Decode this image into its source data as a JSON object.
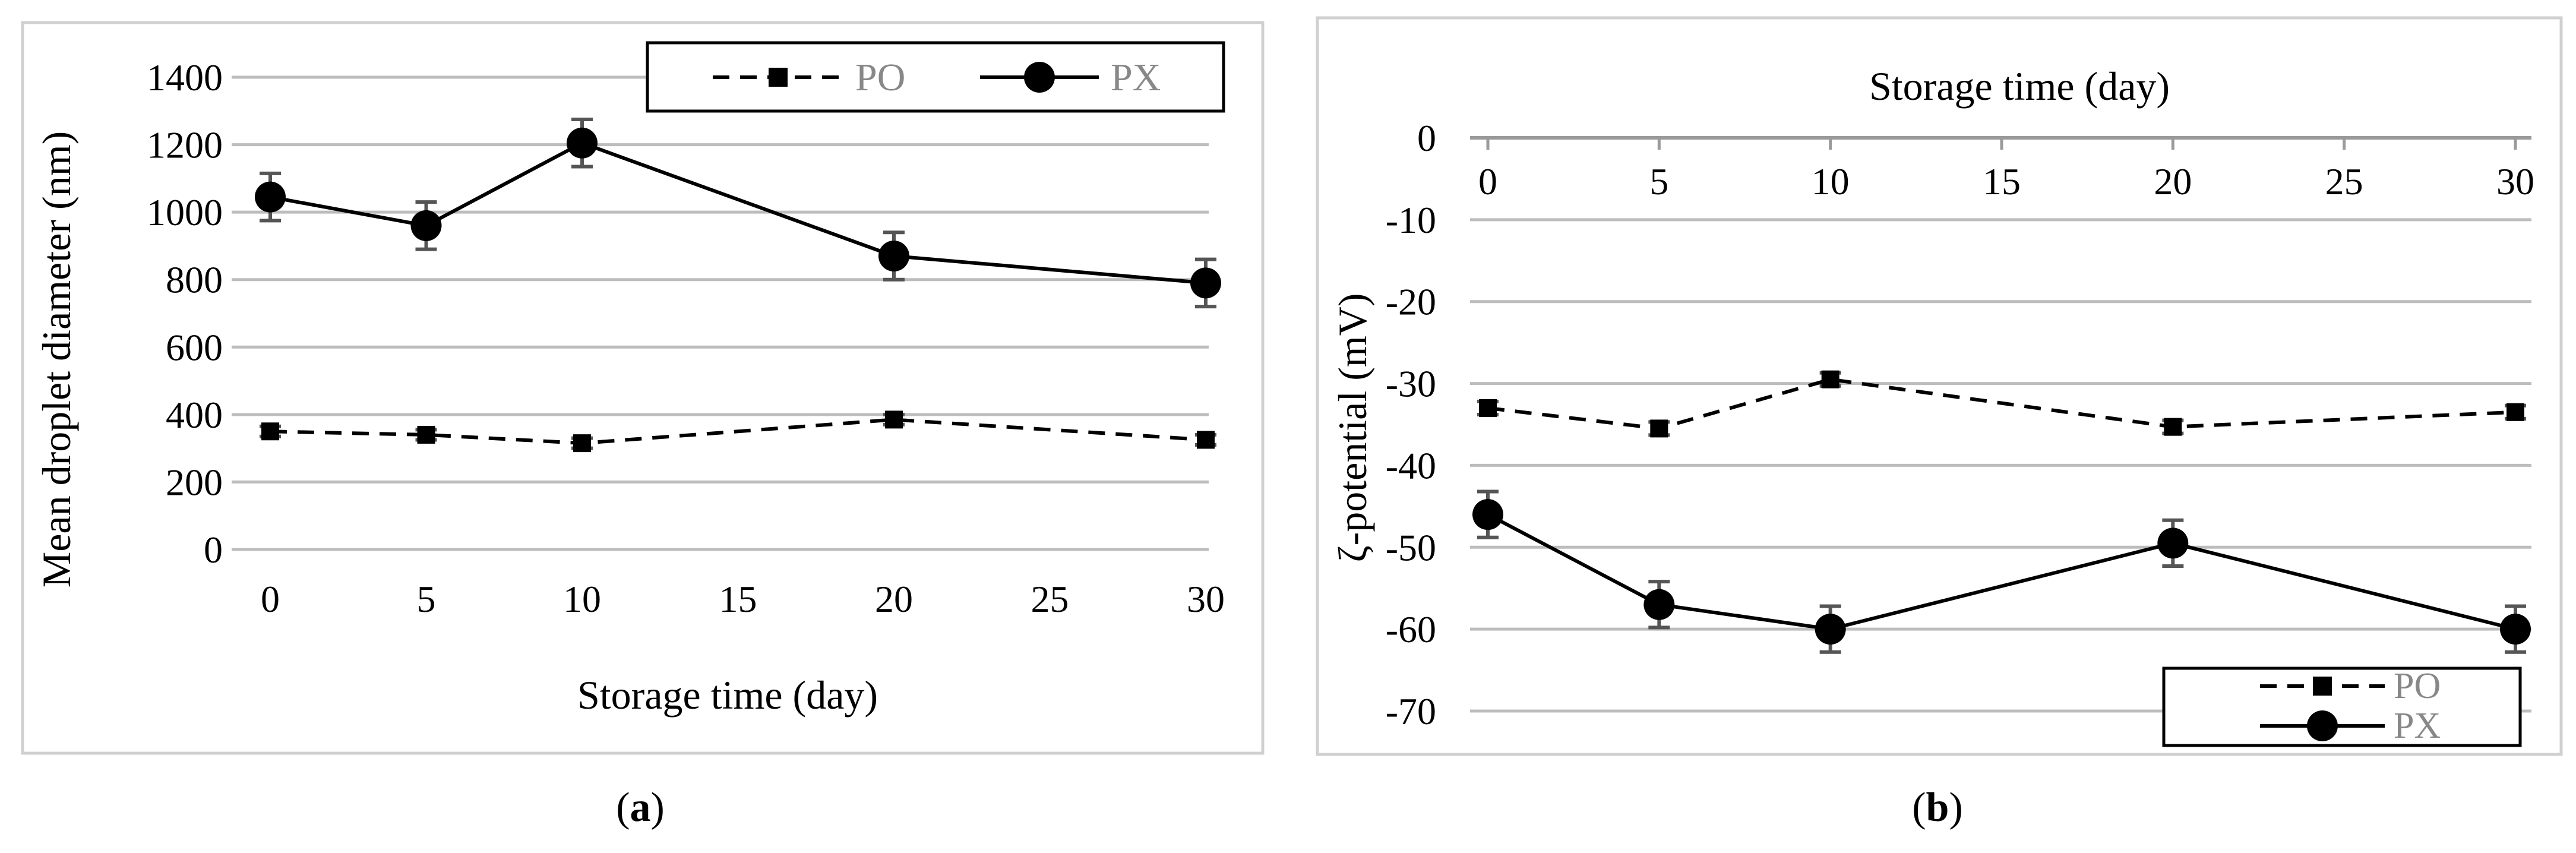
{
  "chart_data": [
    {
      "type": "line",
      "panel_label": "a",
      "title": "",
      "xlabel": "Storage time (day)",
      "ylabel": "Mean droplet diameter (nm)",
      "xlim": [
        0,
        30
      ],
      "ylim": [
        0,
        1400
      ],
      "xticks": [
        0,
        5,
        10,
        15,
        20,
        25,
        30
      ],
      "yticks": [
        0,
        200,
        400,
        600,
        800,
        1000,
        1200,
        1400
      ],
      "grid": true,
      "legend_position": "top-right",
      "series": [
        {
          "name": "PO",
          "style": "dashed",
          "marker": "square",
          "x": [
            0,
            5,
            10,
            20,
            30
          ],
          "values": [
            350,
            340,
            315,
            385,
            325
          ],
          "errors": [
            15,
            15,
            15,
            15,
            15
          ]
        },
        {
          "name": "PX",
          "style": "solid",
          "marker": "circle",
          "x": [
            0,
            5,
            10,
            20,
            30
          ],
          "values": [
            1045,
            960,
            1205,
            870,
            790
          ],
          "errors": [
            70,
            70,
            70,
            70,
            70
          ]
        }
      ]
    },
    {
      "type": "line",
      "panel_label": "b",
      "title": "",
      "xlabel": "Storage time (day)",
      "ylabel": "ζ-potential (mV)",
      "xlim": [
        0,
        30
      ],
      "ylim": [
        -70,
        0
      ],
      "xticks": [
        0,
        5,
        10,
        15,
        20,
        25,
        30
      ],
      "yticks": [
        0,
        -10,
        -20,
        -30,
        -40,
        -50,
        -60,
        -70
      ],
      "xaxis_position": "top",
      "grid": true,
      "legend_position": "bottom-right",
      "series": [
        {
          "name": "PO",
          "style": "dashed",
          "marker": "square",
          "x": [
            0,
            5,
            10,
            20,
            30
          ],
          "values": [
            -33,
            -35.5,
            -29.5,
            -35.3,
            -33.5
          ],
          "errors": [
            0.8,
            0.8,
            0.8,
            0.8,
            0.8
          ]
        },
        {
          "name": "PX",
          "style": "solid",
          "marker": "circle",
          "x": [
            0,
            5,
            10,
            20,
            30
          ],
          "values": [
            -46,
            -57,
            -60,
            -49.5,
            -60
          ],
          "errors": [
            2.8,
            2.8,
            2.8,
            2.8,
            2.8
          ]
        }
      ]
    }
  ]
}
